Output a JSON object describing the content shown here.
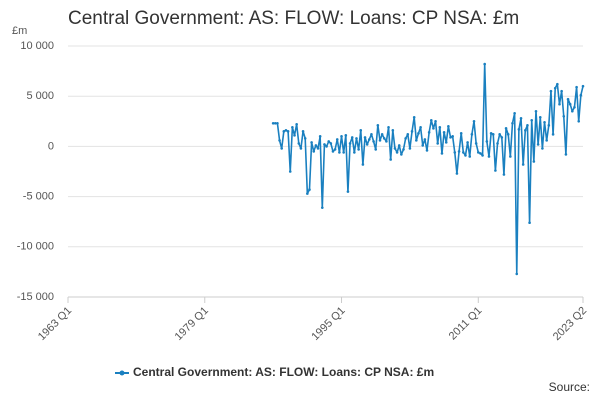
{
  "chart_data": {
    "type": "line",
    "title": "Central Government: AS: FLOW: Loans: CP NSA: £m",
    "y_unit": "£m",
    "source": "Source:",
    "legend_position": "bottom",
    "grid": true,
    "xlim": [
      1963,
      2023.25
    ],
    "xticks": [
      {
        "value": 1963,
        "label": "1963 Q1"
      },
      {
        "value": 1979,
        "label": "1979 Q1"
      },
      {
        "value": 1995,
        "label": "1995 Q1"
      },
      {
        "value": 2011,
        "label": "2011 Q1"
      },
      {
        "value": 2023.25,
        "label": "2023 Q2"
      }
    ],
    "ylim": [
      -15000,
      10000
    ],
    "yticks": [
      {
        "value": 10000,
        "label": "10 000"
      },
      {
        "value": 5000,
        "label": "5 000"
      },
      0,
      {
        "value": -5000,
        "label": "-5 000"
      },
      {
        "value": -10000,
        "label": "-10 000"
      },
      {
        "value": -15000,
        "label": "-15 000"
      }
    ],
    "x": [
      1987,
      1987.25,
      1987.5,
      1987.75,
      1988,
      1988.25,
      1988.5,
      1988.75,
      1989,
      1989.25,
      1989.5,
      1989.75,
      1990,
      1990.25,
      1990.5,
      1990.75,
      1991,
      1991.25,
      1991.5,
      1991.75,
      1992,
      1992.25,
      1992.5,
      1992.75,
      1993,
      1993.25,
      1993.5,
      1993.75,
      1994,
      1994.25,
      1994.5,
      1994.75,
      1995,
      1995.25,
      1995.5,
      1995.75,
      1996,
      1996.25,
      1996.5,
      1996.75,
      1997,
      1997.25,
      1997.5,
      1997.75,
      1998,
      1998.25,
      1998.5,
      1998.75,
      1999,
      1999.25,
      1999.5,
      1999.75,
      2000,
      2000.25,
      2000.5,
      2000.75,
      2001,
      2001.25,
      2001.5,
      2001.75,
      2002,
      2002.25,
      2002.5,
      2002.75,
      2003,
      2003.25,
      2003.5,
      2003.75,
      2004,
      2004.25,
      2004.5,
      2004.75,
      2005,
      2005.25,
      2005.5,
      2005.75,
      2006,
      2006.25,
      2006.5,
      2006.75,
      2007,
      2007.25,
      2007.5,
      2007.75,
      2008,
      2008.25,
      2008.5,
      2008.75,
      2009,
      2009.25,
      2009.5,
      2009.75,
      2010,
      2010.25,
      2010.5,
      2010.75,
      2011,
      2011.25,
      2011.5,
      2011.75,
      2012,
      2012.25,
      2012.5,
      2012.75,
      2013,
      2013.25,
      2013.5,
      2013.75,
      2014,
      2014.25,
      2014.5,
      2014.75,
      2015,
      2015.25,
      2015.5,
      2015.75,
      2016,
      2016.25,
      2016.5,
      2016.75,
      2017,
      2017.25,
      2017.5,
      2017.75,
      2018,
      2018.25,
      2018.5,
      2018.75,
      2019,
      2019.25,
      2019.5,
      2019.75,
      2020,
      2020.25,
      2020.5,
      2020.75,
      2021,
      2021.25,
      2021.5,
      2021.75,
      2022,
      2022.25,
      2022.5,
      2022.75,
      2023,
      2023.25
    ],
    "series": [
      {
        "name": "Central Government: AS: FLOW: Loans: CP NSA: £m",
        "color": "#1a80c0",
        "values": [
          2300,
          2300,
          2300,
          600,
          -200,
          1500,
          1600,
          1500,
          -2500,
          1900,
          1100,
          2200,
          300,
          -200,
          1500,
          800,
          -4700,
          -4300,
          400,
          -500,
          100,
          -200,
          1000,
          -6100,
          200,
          0,
          500,
          300,
          -500,
          -300,
          700,
          -600,
          1000,
          -600,
          1100,
          -4500,
          300,
          900,
          -600,
          800,
          -300,
          1600,
          -1800,
          900,
          200,
          700,
          1200,
          500,
          -300,
          2100,
          600,
          1200,
          800,
          500,
          1900,
          -1300,
          1600,
          -200,
          -600,
          100,
          -800,
          -300,
          800,
          1200,
          -200,
          1500,
          2900,
          600,
          1300,
          1900,
          100,
          700,
          -400,
          1400,
          2600,
          1800,
          2500,
          300,
          1900,
          -700,
          1400,
          400,
          2000,
          900,
          1000,
          -600,
          -2700,
          -500,
          1300,
          -600,
          -900,
          400,
          -1000,
          1200,
          2500,
          300,
          -600,
          -700,
          -900,
          8200,
          500,
          -1000,
          1300,
          1200,
          -2400,
          300,
          1200,
          900,
          -2800,
          1800,
          1200,
          -1000,
          2300,
          3300,
          -12700,
          1700,
          2800,
          -1800,
          1600,
          2100,
          -7600,
          2600,
          -1500,
          3500,
          200,
          2900,
          -200,
          2400,
          600,
          2100,
          5500,
          1200,
          5800,
          6200,
          4200,
          5500,
          3000,
          -800,
          4700,
          4200,
          3500,
          3900,
          5900,
          2500,
          5100,
          6000
        ]
      }
    ]
  }
}
